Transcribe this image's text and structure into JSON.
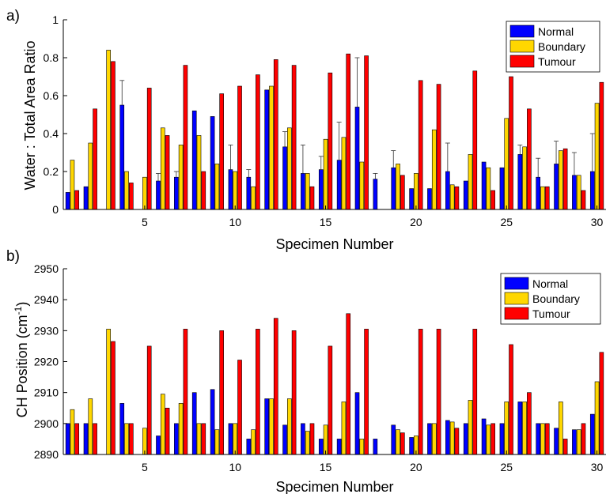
{
  "colors": {
    "normal": "#0000FF",
    "boundary": "#FFD700",
    "tumour": "#FF0000",
    "axis": "#000000"
  },
  "chart_data": [
    {
      "type": "bar",
      "panel_label": "a)",
      "xlabel": "Specimen Number",
      "ylabel": "Water : Total Area Ratio",
      "ylim": [
        0,
        1
      ],
      "yticks": [
        0,
        0.2,
        0.4,
        0.6,
        0.8,
        1
      ],
      "ytick_labels": [
        "0",
        "0.2",
        "0.4",
        "0.6",
        "0.8",
        "1"
      ],
      "xlim": [
        0.5,
        30.5
      ],
      "xticks": [
        5,
        10,
        15,
        20,
        25,
        30
      ],
      "xtick_labels": [
        "5",
        "10",
        "15",
        "20",
        "25",
        "30"
      ],
      "legend": {
        "position": "top-right",
        "entries": [
          "Normal",
          "Boundary",
          "Tumour"
        ]
      },
      "categories": [
        1,
        2,
        3,
        4,
        5,
        6,
        7,
        8,
        9,
        10,
        11,
        12,
        13,
        14,
        15,
        16,
        17,
        18,
        19,
        20,
        21,
        22,
        23,
        24,
        25,
        26,
        27,
        28,
        29,
        30
      ],
      "series": [
        {
          "name": "Normal",
          "values": [
            0.09,
            0.12,
            null,
            0.55,
            null,
            0.15,
            0.17,
            0.52,
            0.49,
            0.21,
            0.17,
            0.63,
            0.33,
            0.19,
            0.21,
            0.26,
            0.54,
            0.16,
            0.22,
            0.11,
            0.11,
            0.2,
            0.15,
            0.25,
            0.22,
            0.29,
            0.17,
            0.24,
            0.18,
            0.2
          ],
          "errors": [
            0.0,
            0.0,
            null,
            0.13,
            null,
            0.04,
            0.03,
            0.0,
            0.0,
            0.13,
            0.04,
            0.0,
            0.08,
            0.15,
            0.07,
            0.2,
            0.26,
            0.03,
            0.09,
            0.0,
            0.0,
            0.15,
            0.0,
            0.0,
            0.0,
            0.05,
            0.1,
            0.12,
            0.12,
            0.2
          ]
        },
        {
          "name": "Boundary",
          "values": [
            0.26,
            0.35,
            0.84,
            0.2,
            0.17,
            0.43,
            0.34,
            0.39,
            0.24,
            0.2,
            0.12,
            0.65,
            0.43,
            0.19,
            0.37,
            0.38,
            0.25,
            null,
            0.24,
            0.19,
            0.42,
            0.13,
            0.29,
            0.22,
            0.48,
            0.33,
            0.12,
            0.31,
            0.18,
            0.56
          ]
        },
        {
          "name": "Tumour",
          "values": [
            0.1,
            0.53,
            0.78,
            0.14,
            0.64,
            0.39,
            0.76,
            0.2,
            0.61,
            0.65,
            0.71,
            0.79,
            0.76,
            0.12,
            0.72,
            0.82,
            0.81,
            null,
            0.18,
            0.68,
            0.66,
            0.12,
            0.73,
            0.1,
            0.7,
            0.53,
            0.12,
            0.32,
            0.1,
            0.67
          ]
        }
      ]
    },
    {
      "type": "bar",
      "panel_label": "b)",
      "xlabel": "Specimen Number",
      "ylabel": "CH Position (cm",
      "ylabel_sup": "-1",
      "ylabel_close": ")",
      "ylim": [
        2890,
        2950
      ],
      "yticks": [
        2890,
        2900,
        2910,
        2920,
        2930,
        2940,
        2950
      ],
      "ytick_labels": [
        "2890",
        "2900",
        "2910",
        "2920",
        "2930",
        "2940",
        "2950"
      ],
      "xlim": [
        0.5,
        30.5
      ],
      "xticks": [
        5,
        10,
        15,
        20,
        25,
        30
      ],
      "xtick_labels": [
        "5",
        "10",
        "15",
        "20",
        "25",
        "30"
      ],
      "legend": {
        "position": "top-right",
        "entries": [
          "Normal",
          "Boundary",
          "Tumour"
        ]
      },
      "categories": [
        1,
        2,
        3,
        4,
        5,
        6,
        7,
        8,
        9,
        10,
        11,
        12,
        13,
        14,
        15,
        16,
        17,
        18,
        19,
        20,
        21,
        22,
        23,
        24,
        25,
        26,
        27,
        28,
        29,
        30
      ],
      "series": [
        {
          "name": "Normal",
          "values": [
            2900,
            2900,
            null,
            2906.5,
            null,
            2896,
            2900,
            2910,
            2911,
            2900,
            2895,
            2908,
            2899.5,
            2900,
            2895,
            2895,
            2910,
            2895,
            2899.5,
            2895.5,
            2900,
            2901,
            2900,
            2901.5,
            2900,
            2907,
            2900,
            2898.5,
            2898,
            2903
          ]
        },
        {
          "name": "Boundary",
          "values": [
            2904.5,
            2908,
            2930.5,
            2900,
            2898.5,
            2909.5,
            2906.5,
            2900,
            2898,
            2900,
            2898,
            2908,
            2908,
            2897.5,
            2899.5,
            2907,
            2895,
            null,
            2898,
            2896,
            2900,
            2900.5,
            2907.5,
            2899.5,
            2907,
            2907,
            2900,
            2907,
            2898,
            2913.5
          ]
        },
        {
          "name": "Tumour",
          "values": [
            2900,
            2900,
            2926.5,
            2900,
            2925,
            2905,
            2930.5,
            2900,
            2930,
            2920.5,
            2930.5,
            2934,
            2930,
            2900,
            2925,
            2935.5,
            2930.5,
            null,
            2897,
            2930.5,
            2930.5,
            2898.5,
            2930.5,
            2900,
            2925.5,
            2910,
            2900,
            2895,
            2900,
            2923
          ]
        }
      ]
    }
  ]
}
